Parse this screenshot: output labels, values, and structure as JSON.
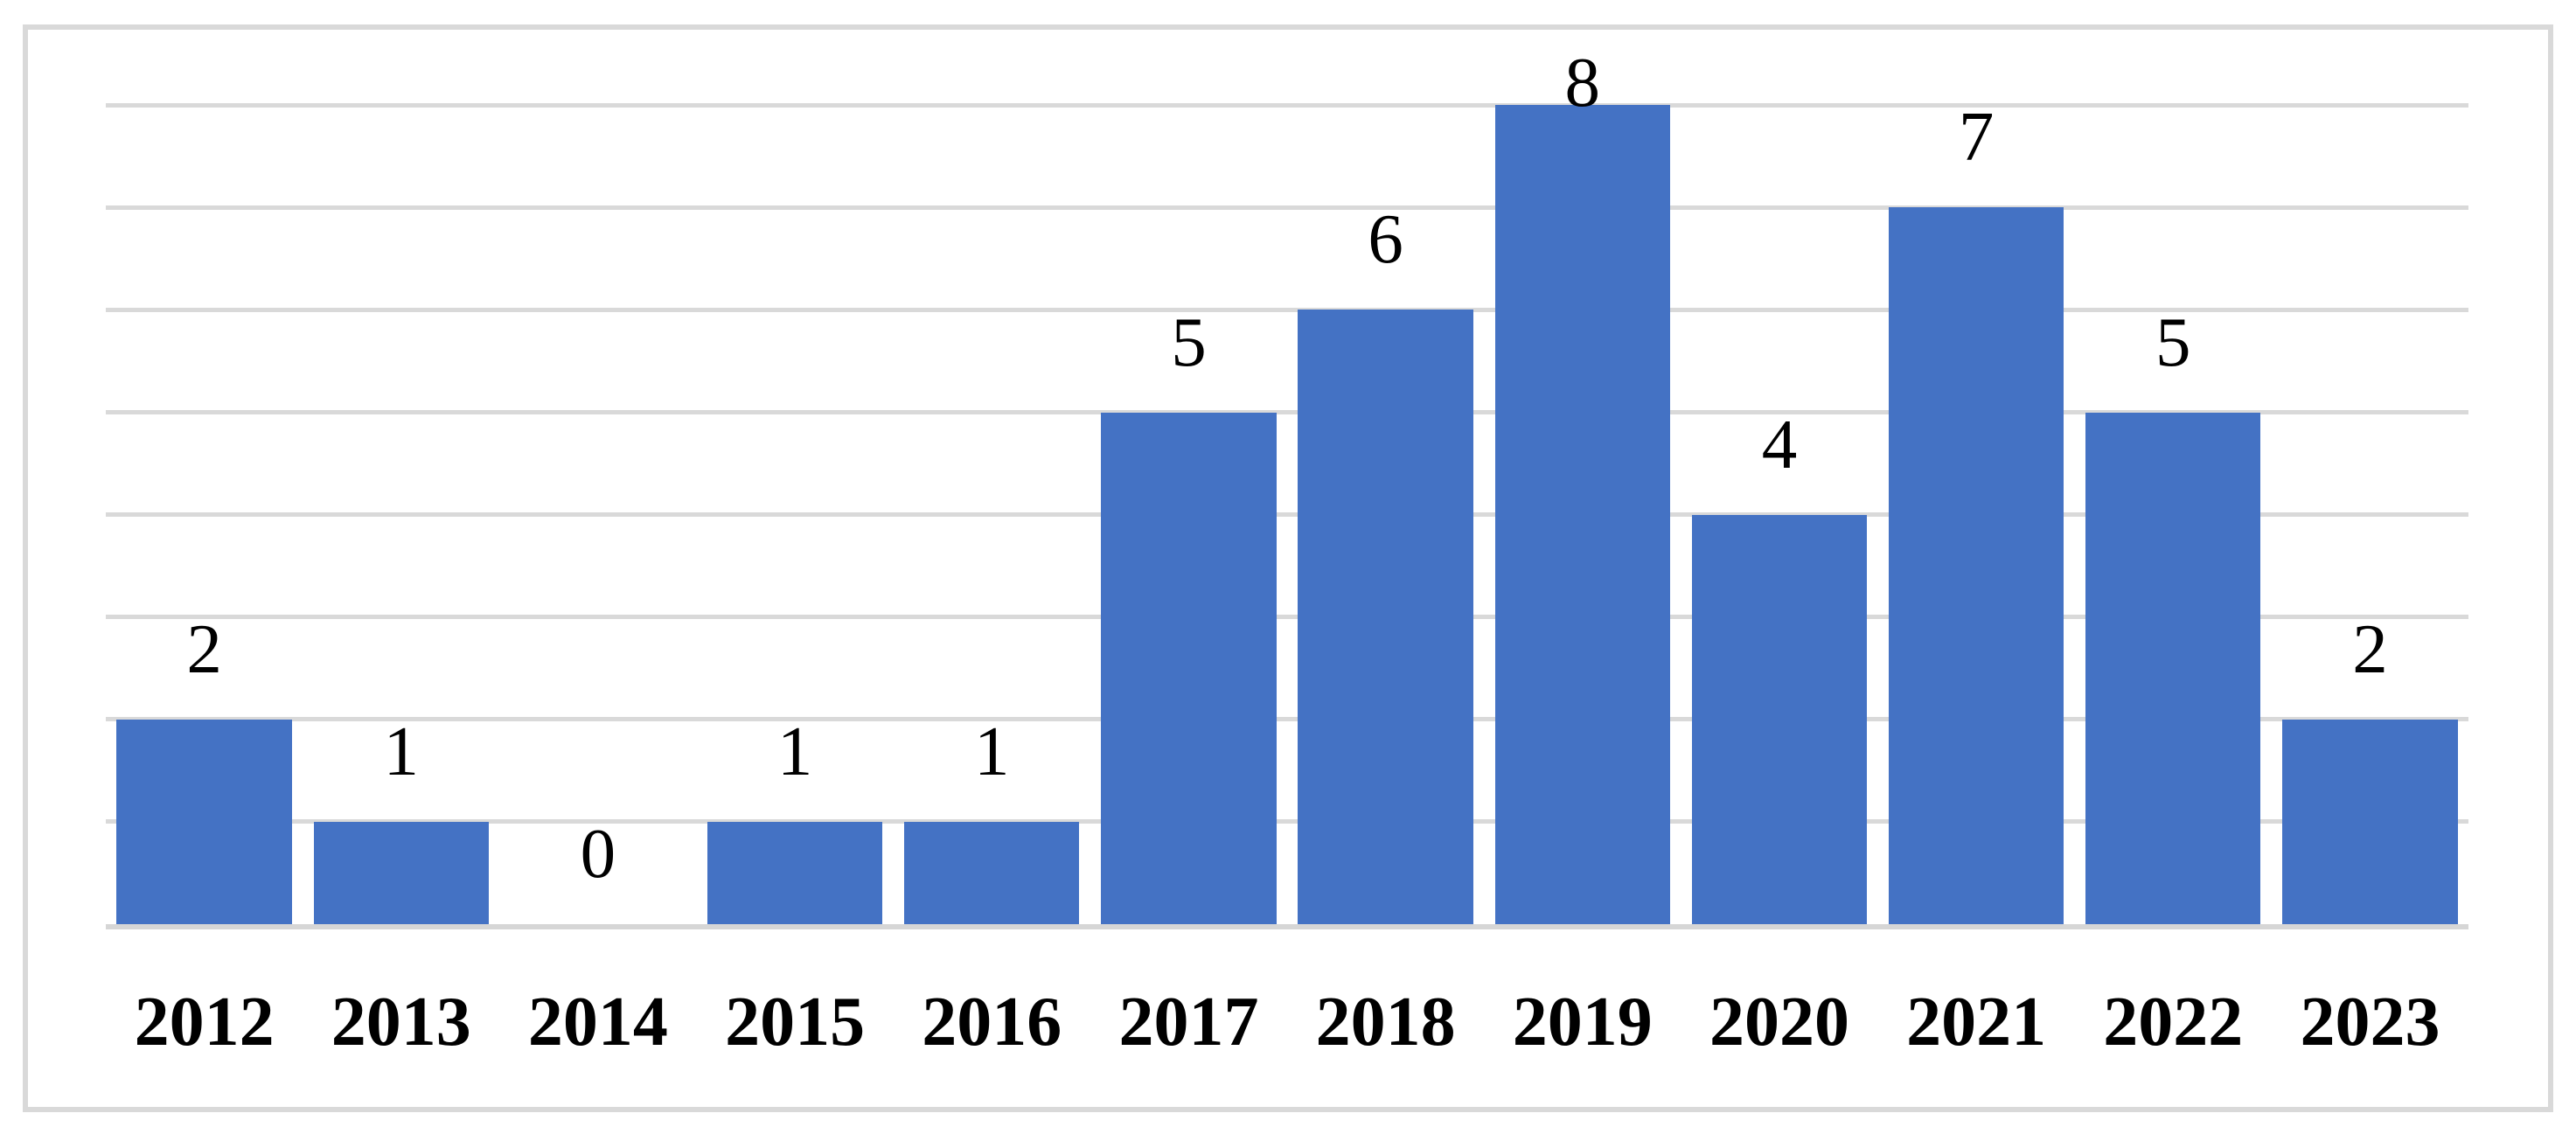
{
  "chart_data": {
    "type": "bar",
    "title": "",
    "xlabel": "",
    "ylabel": "",
    "categories": [
      "2012",
      "2013",
      "2014",
      "2015",
      "2016",
      "2017",
      "2018",
      "2019",
      "2020",
      "2021",
      "2022",
      "2023"
    ],
    "values": [
      2,
      1,
      0,
      1,
      1,
      5,
      6,
      8,
      4,
      7,
      5,
      2
    ],
    "data_labels": [
      "2",
      "1",
      "0",
      "1",
      "1",
      "5",
      "6",
      "8",
      "4",
      "7",
      "5",
      "2"
    ],
    "ylim": [
      0,
      8
    ],
    "gridline_values": [
      1,
      2,
      3,
      4,
      5,
      6,
      7,
      8
    ],
    "grid": "horizontal",
    "legend_position": "none",
    "y_axis_labels_visible": false,
    "colors": {
      "bar": "#4472C4",
      "gridline": "#D9D9D9",
      "axis_line": "#D6D6D6",
      "frame_border": "#D9D9D9",
      "background": "#FFFFFF",
      "label_text": "#000000"
    }
  }
}
